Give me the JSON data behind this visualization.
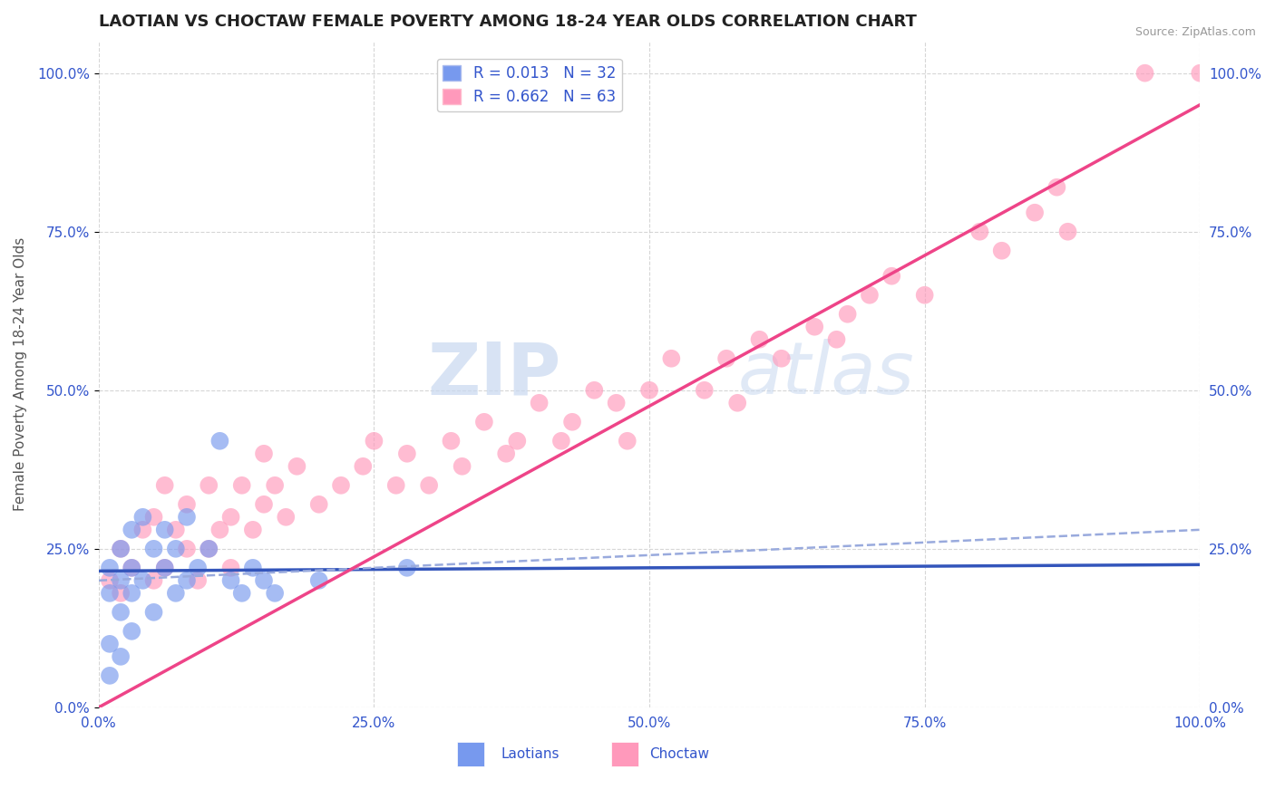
{
  "title": "LAOTIAN VS CHOCTAW FEMALE POVERTY AMONG 18-24 YEAR OLDS CORRELATION CHART",
  "source": "Source: ZipAtlas.com",
  "ylabel": "Female Poverty Among 18-24 Year Olds",
  "xlabel": "",
  "xlim": [
    0,
    100
  ],
  "ylim": [
    0,
    105
  ],
  "xticks": [
    0,
    25,
    50,
    75,
    100
  ],
  "yticks": [
    0,
    25,
    50,
    75,
    100
  ],
  "xticklabels": [
    "0.0%",
    "25.0%",
    "50.0%",
    "75.0%",
    "100.0%"
  ],
  "yticklabels": [
    "0.0%",
    "25.0%",
    "50.0%",
    "75.0%",
    "100.0%"
  ],
  "background_color": "#ffffff",
  "grid_color": "#cccccc",
  "watermark_zip": "ZIP",
  "watermark_atlas": "atlas",
  "legend_label1": "R = 0.013   N = 32",
  "legend_label2": "R = 0.662   N = 63",
  "color_blue": "#7799ee",
  "color_pink": "#ff99bb",
  "color_trend_blue_solid": "#3355bb",
  "color_trend_pink_solid": "#ee4488",
  "color_trend_blue_dashed": "#99aadd",
  "title_fontsize": 13,
  "label_fontsize": 11,
  "tick_fontsize": 11,
  "laotian_x": [
    1,
    1,
    1,
    1,
    2,
    2,
    2,
    2,
    3,
    3,
    3,
    3,
    4,
    4,
    5,
    5,
    6,
    6,
    7,
    7,
    8,
    8,
    9,
    10,
    11,
    12,
    13,
    14,
    15,
    16,
    20,
    28
  ],
  "laotian_y": [
    5,
    10,
    18,
    22,
    8,
    15,
    20,
    25,
    12,
    18,
    22,
    28,
    20,
    30,
    15,
    25,
    22,
    28,
    18,
    25,
    20,
    30,
    22,
    25,
    42,
    20,
    18,
    22,
    20,
    18,
    20,
    22
  ],
  "choctaw_x": [
    1,
    2,
    2,
    3,
    4,
    5,
    5,
    6,
    6,
    7,
    8,
    8,
    9,
    10,
    10,
    11,
    12,
    12,
    13,
    14,
    15,
    15,
    16,
    17,
    18,
    20,
    22,
    24,
    25,
    27,
    28,
    30,
    32,
    33,
    35,
    37,
    38,
    40,
    42,
    43,
    45,
    47,
    48,
    50,
    52,
    55,
    57,
    58,
    60,
    62,
    65,
    67,
    68,
    70,
    72,
    75,
    80,
    82,
    85,
    87,
    88,
    95,
    100
  ],
  "choctaw_y": [
    20,
    18,
    25,
    22,
    28,
    20,
    30,
    22,
    35,
    28,
    25,
    32,
    20,
    25,
    35,
    28,
    30,
    22,
    35,
    28,
    32,
    40,
    35,
    30,
    38,
    32,
    35,
    38,
    42,
    35,
    40,
    35,
    42,
    38,
    45,
    40,
    42,
    48,
    42,
    45,
    50,
    48,
    42,
    50,
    55,
    50,
    55,
    48,
    58,
    55,
    60,
    58,
    62,
    65,
    68,
    65,
    75,
    72,
    78,
    82,
    75,
    100,
    100
  ],
  "trend_lao_x0": 0,
  "trend_lao_x1": 100,
  "trend_lao_y0": 21.5,
  "trend_lao_y1": 22.5,
  "trend_dashed_y0": 20.0,
  "trend_dashed_y1": 28.0,
  "trend_cho_x0": 0,
  "trend_cho_x1": 100,
  "trend_cho_y0": 0,
  "trend_cho_y1": 95
}
